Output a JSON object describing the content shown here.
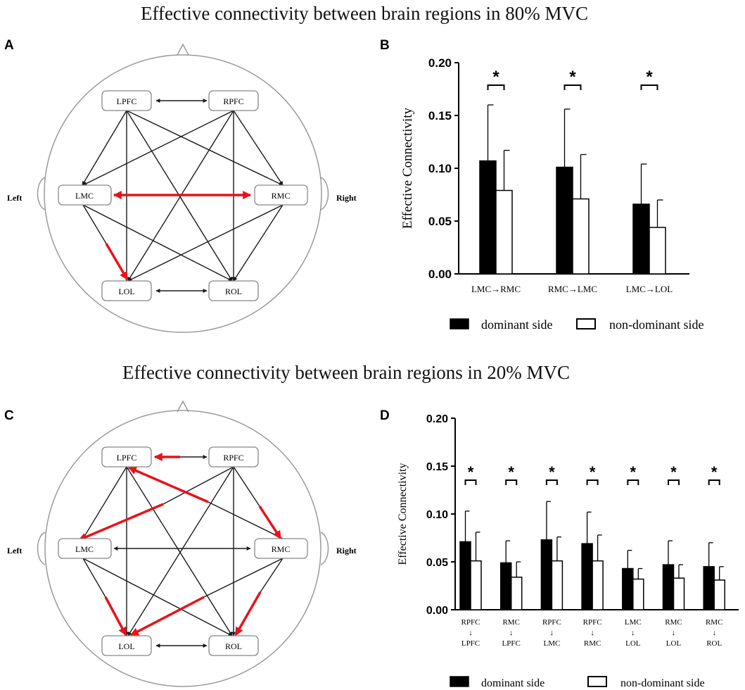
{
  "figure": {
    "title_top": "Effective connectivity between brain regions in 80% MVC",
    "title_bottom": "Effective connectivity between brain regions in 20% MVC",
    "panel_labels": {
      "a": "A",
      "b": "B",
      "c": "C",
      "d": "D"
    },
    "colors": {
      "highlight": "#e8121b",
      "line": "#1a1a1a",
      "bar_dominant": "#000000",
      "bar_nondominant": "#ffffff",
      "head": "#9a9a9a"
    }
  },
  "brain_map_a": {
    "left_label": "Left",
    "right_label": "Right",
    "nodes": {
      "LPFC": "LPFC",
      "RPFC": "RPFC",
      "LMC": "LMC",
      "RMC": "RMC",
      "LOL": "LOL",
      "ROL": "ROL"
    },
    "highlighted_connections": [
      {
        "from": "LMC",
        "to": "RMC",
        "bidirectional": true
      },
      {
        "from": "LMC",
        "to": "LOL",
        "bidirectional": false
      }
    ]
  },
  "brain_map_c": {
    "left_label": "Left",
    "right_label": "Right",
    "nodes": {
      "LPFC": "LPFC",
      "RPFC": "RPFC",
      "LMC": "LMC",
      "RMC": "RMC",
      "LOL": "LOL",
      "ROL": "ROL"
    },
    "highlighted_connections": [
      {
        "from": "RPFC",
        "to": "LPFC"
      },
      {
        "from": "RMC",
        "to": "LPFC"
      },
      {
        "from": "RPFC",
        "to": "LMC"
      },
      {
        "from": "RPFC",
        "to": "RMC"
      },
      {
        "from": "LMC",
        "to": "LOL"
      },
      {
        "from": "RMC",
        "to": "LOL"
      },
      {
        "from": "RMC",
        "to": "ROL"
      }
    ]
  },
  "chart_data": [
    {
      "panel": "B",
      "type": "bar",
      "ylabel": "Effective Connectivity",
      "ylim": [
        0,
        0.2
      ],
      "yticks": [
        "0.00",
        "0.05",
        "0.10",
        "0.15",
        "0.20"
      ],
      "categories": [
        "LMC→RMC",
        "RMC→LMC",
        "LMC→LOL"
      ],
      "series": [
        {
          "name": "dominant side",
          "values": [
            0.107,
            0.101,
            0.066
          ],
          "errors": [
            0.053,
            0.055,
            0.038
          ]
        },
        {
          "name": "non-dominant side",
          "values": [
            0.079,
            0.071,
            0.044
          ],
          "errors": [
            0.038,
            0.042,
            0.026
          ]
        }
      ],
      "significance": [
        "*",
        "*",
        "*"
      ],
      "legend": [
        "dominant side",
        "non-dominant side"
      ]
    },
    {
      "panel": "D",
      "type": "bar",
      "ylabel": "Effective Connectivity",
      "ylim": [
        0,
        0.2
      ],
      "yticks": [
        "0.00",
        "0.05",
        "0.10",
        "0.15",
        "0.20"
      ],
      "categories": [
        {
          "from": "RPFC",
          "arrow": "↓",
          "to": "LPFC"
        },
        {
          "from": "RMC",
          "arrow": "↓",
          "to": "LPFC"
        },
        {
          "from": "RPFC",
          "arrow": "↓",
          "to": "LMC"
        },
        {
          "from": "RPFC",
          "arrow": "↓",
          "to": "RMC"
        },
        {
          "from": "LMC",
          "arrow": "↓",
          "to": "LOL"
        },
        {
          "from": "RMC",
          "arrow": "↓",
          "to": "LOL"
        },
        {
          "from": "RMC",
          "arrow": "↓",
          "to": "ROL"
        }
      ],
      "series": [
        {
          "name": "dominant side",
          "values": [
            0.071,
            0.049,
            0.073,
            0.069,
            0.043,
            0.047,
            0.045
          ],
          "errors": [
            0.032,
            0.023,
            0.04,
            0.033,
            0.019,
            0.025,
            0.025
          ]
        },
        {
          "name": "non-dominant side",
          "values": [
            0.051,
            0.034,
            0.051,
            0.051,
            0.032,
            0.033,
            0.031
          ],
          "errors": [
            0.03,
            0.016,
            0.025,
            0.027,
            0.011,
            0.014,
            0.014
          ]
        }
      ],
      "significance": [
        "*",
        "*",
        "*",
        "*",
        "*",
        "*",
        "*"
      ],
      "legend": [
        "dominant side",
        "non-dominant side"
      ]
    }
  ]
}
